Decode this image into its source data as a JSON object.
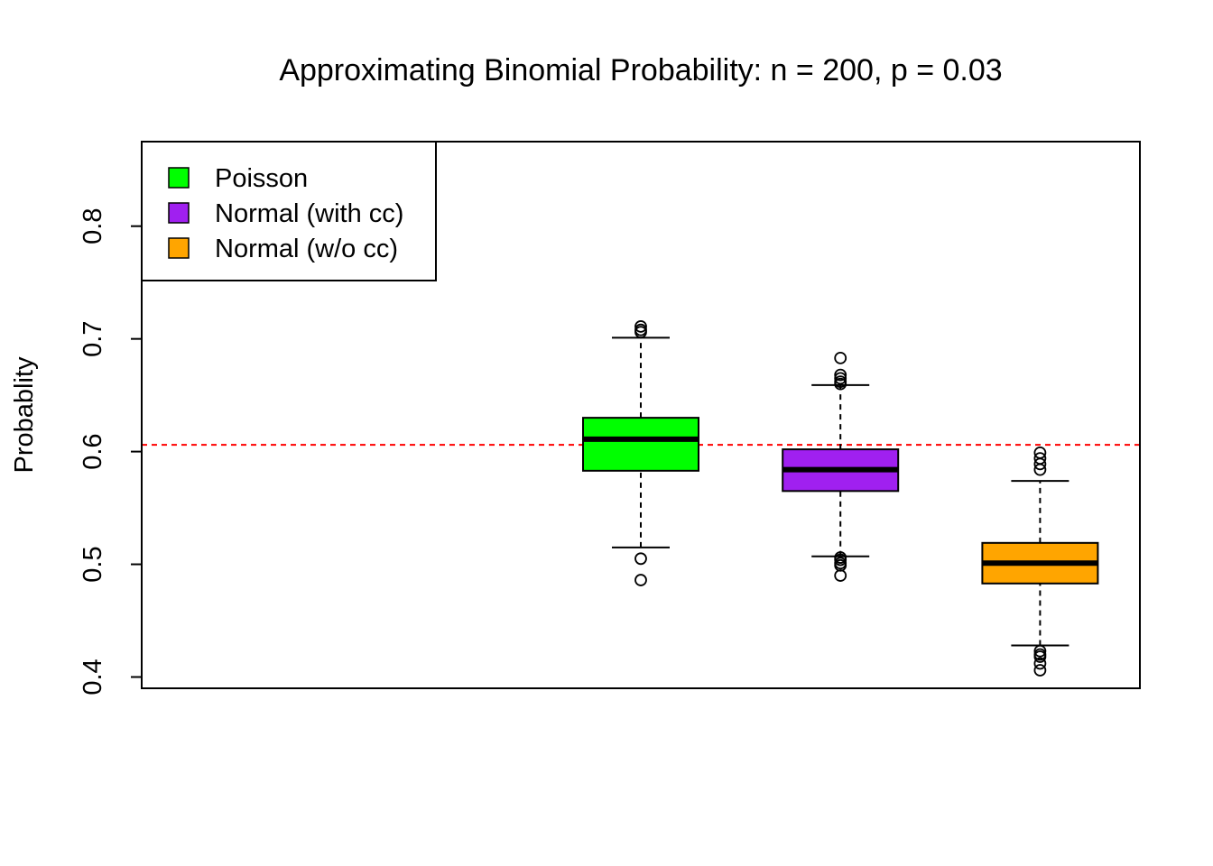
{
  "chart_data": {
    "type": "boxplot",
    "title": "Approximating Binomial Probability: n = 200, p = 0.03",
    "xlabel": "",
    "ylabel": "Probablity",
    "ylim": [
      0.39,
      0.875
    ],
    "y_ticks": [
      "0.4",
      "0.5",
      "0.6",
      "0.7",
      "0.8"
    ],
    "reference_line": {
      "y": 0.606,
      "color": "#ff0000",
      "style": "dashed"
    },
    "legend": {
      "position": "top-left",
      "entries": [
        {
          "label": "Poisson",
          "color": "#00ff00"
        },
        {
          "label": "Normal (with cc)",
          "color": "#a020f0"
        },
        {
          "label": "Normal (w/o cc)",
          "color": "#ffa500"
        }
      ]
    },
    "series": [
      {
        "name": "Poisson",
        "color": "#00ff00",
        "position": 3,
        "whisker_low": 0.515,
        "q1": 0.583,
        "median": 0.611,
        "q3": 0.63,
        "whisker_high": 0.701,
        "outliers": [
          0.711,
          0.708,
          0.706,
          0.505,
          0.486
        ]
      },
      {
        "name": "Normal (with cc)",
        "color": "#a020f0",
        "position": 4,
        "whisker_low": 0.507,
        "q1": 0.565,
        "median": 0.584,
        "q3": 0.602,
        "whisker_high": 0.659,
        "outliers": [
          0.683,
          0.668,
          0.665,
          0.662,
          0.66,
          0.506,
          0.504,
          0.501,
          0.499,
          0.49
        ]
      },
      {
        "name": "Normal (w/o cc)",
        "color": "#ffa500",
        "position": 5,
        "whisker_low": 0.428,
        "q1": 0.483,
        "median": 0.501,
        "q3": 0.519,
        "whisker_high": 0.574,
        "outliers": [
          0.599,
          0.594,
          0.589,
          0.584,
          0.423,
          0.42,
          0.418,
          0.412,
          0.406
        ]
      }
    ]
  }
}
